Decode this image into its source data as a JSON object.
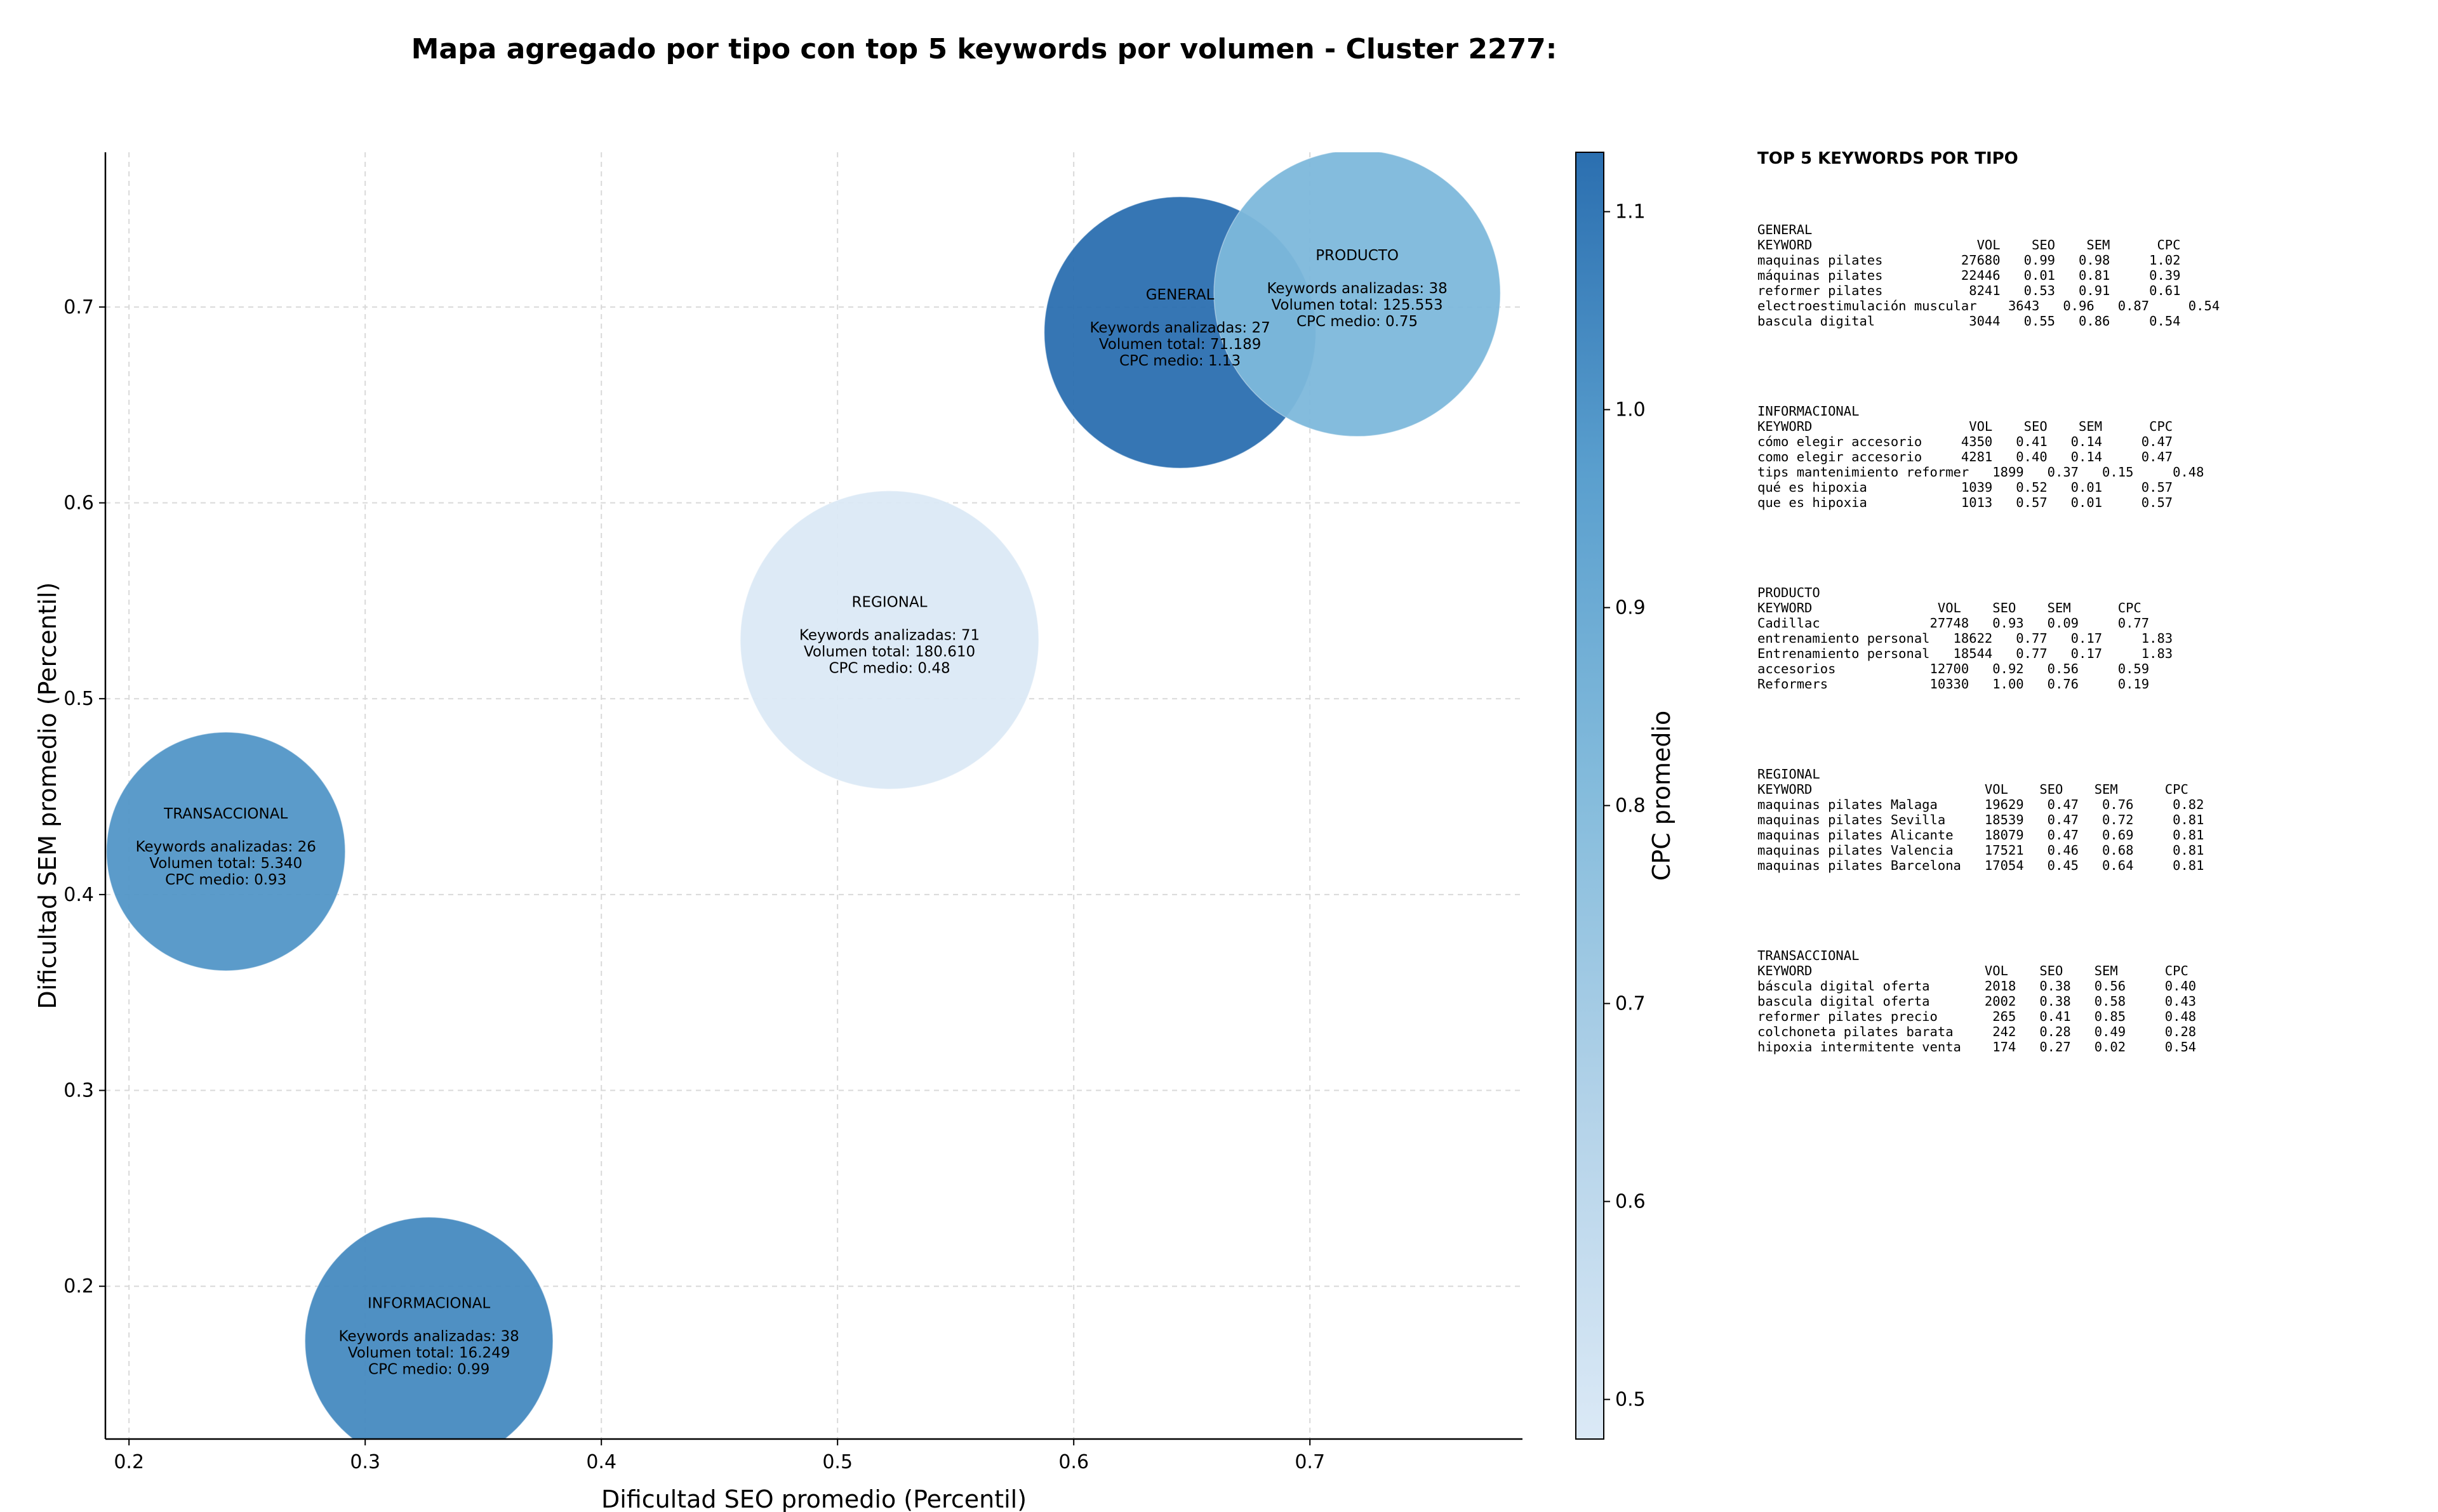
{
  "chart_data": {
    "type": "scatter",
    "title": "Mapa agregado por tipo con top 5 keywords por volumen - Cluster 2277:",
    "xlabel": "Dificultad SEO promedio (Percentil)",
    "ylabel": "Dificultad SEM promedio (Percentil)",
    "xlim": [
      0.19,
      0.79
    ],
    "ylim": [
      0.122,
      0.779
    ],
    "xticks": [
      "0.2",
      "0.3",
      "0.4",
      "0.5",
      "0.6",
      "0.7"
    ],
    "yticks": [
      "0.2",
      "0.3",
      "0.4",
      "0.5",
      "0.6",
      "0.7"
    ],
    "grid": true,
    "colorbar": {
      "label": "CPC promedio",
      "range": [
        0.48,
        1.13
      ],
      "ticks": [
        "0.5",
        "0.6",
        "0.7",
        "0.8",
        "0.9",
        "1.0",
        "1.1"
      ]
    },
    "colors": {
      "low": "#c6dbef",
      "mid": "#6aaed6",
      "high": "#2b6fb0"
    },
    "points": [
      {
        "name": "GENERAL",
        "x": 0.645,
        "y": 0.687,
        "cpc": 1.13,
        "volume": 71189,
        "label_type": "GENERAL",
        "label_kw": "Keywords analizadas: 27",
        "label_vol": "Volumen total: 71.189",
        "label_cpc": "CPC medio: 1.13"
      },
      {
        "name": "INFORMACIONAL",
        "x": 0.327,
        "y": 0.172,
        "cpc": 0.99,
        "volume": 16249,
        "label_type": "INFORMACIONAL",
        "label_kw": "Keywords analizadas: 38",
        "label_vol": "Volumen total: 16.249",
        "label_cpc": "CPC medio: 0.99"
      },
      {
        "name": "PRODUCTO",
        "x": 0.72,
        "y": 0.707,
        "cpc": 0.75,
        "volume": 125553,
        "label_type": "PRODUCTO",
        "label_kw": "Keywords analizadas: 38",
        "label_vol": "Volumen total: 125.553",
        "label_cpc": "CPC medio: 0.75"
      },
      {
        "name": "REGIONAL",
        "x": 0.522,
        "y": 0.53,
        "cpc": 0.48,
        "volume": 180610,
        "label_type": "REGIONAL",
        "label_kw": "Keywords analizadas: 71",
        "label_vol": "Volumen total: 180.610",
        "label_cpc": "CPC medio: 0.48"
      },
      {
        "name": "TRANSACCIONAL",
        "x": 0.241,
        "y": 0.422,
        "cpc": 0.93,
        "volume": 5340,
        "label_type": "TRANSACCIONAL",
        "label_kw": "Keywords analizadas: 26",
        "label_vol": "Volumen total: 5.340",
        "label_cpc": "CPC medio: 0.93"
      }
    ]
  },
  "keywords_panel": {
    "heading": "TOP 5 KEYWORDS POR TIPO",
    "groups": [
      {
        "name": "GENERAL",
        "text": "KEYWORD                     VOL    SEO    SEM      CPC\nmaquinas pilates          27680   0.99   0.98     1.02\nmáquinas pilates          22446   0.01   0.81     0.39\nreformer pilates           8241   0.53   0.91     0.61\nelectroestimulación muscular    3643   0.96   0.87     0.54\nbascula digital            3044   0.55   0.86     0.54"
      },
      {
        "name": "INFORMACIONAL",
        "text": "KEYWORD                    VOL    SEO    SEM      CPC\ncómo elegir accesorio     4350   0.41   0.14     0.47\ncomo elegir accesorio     4281   0.40   0.14     0.47\ntips mantenimiento reformer   1899   0.37   0.15     0.48\nqué es hipoxia            1039   0.52   0.01     0.57\nque es hipoxia            1013   0.57   0.01     0.57"
      },
      {
        "name": "PRODUCTO",
        "text": "KEYWORD                VOL    SEO    SEM      CPC\nCadillac              27748   0.93   0.09     0.77\nentrenamiento personal   18622   0.77   0.17     1.83\nEntrenamiento personal   18544   0.77   0.17     1.83\naccesorios            12700   0.92   0.56     0.59\nReformers             10330   1.00   0.76     0.19"
      },
      {
        "name": "REGIONAL",
        "text": "KEYWORD                      VOL    SEO    SEM      CPC\nmaquinas pilates Malaga      19629   0.47   0.76     0.82\nmaquinas pilates Sevilla     18539   0.47   0.72     0.81\nmaquinas pilates Alicante    18079   0.47   0.69     0.81\nmaquinas pilates Valencia    17521   0.46   0.68     0.81\nmaquinas pilates Barcelona   17054   0.45   0.64     0.81"
      },
      {
        "name": "TRANSACCIONAL",
        "text": "KEYWORD                      VOL    SEO    SEM      CPC\nbáscula digital oferta       2018   0.38   0.56     0.40\nbascula digital oferta       2002   0.38   0.58     0.43\nreformer pilates precio       265   0.41   0.85     0.48\ncolchoneta pilates barata     242   0.28   0.49     0.28\nhipoxia intermitente venta    174   0.27   0.02     0.54"
      }
    ]
  }
}
